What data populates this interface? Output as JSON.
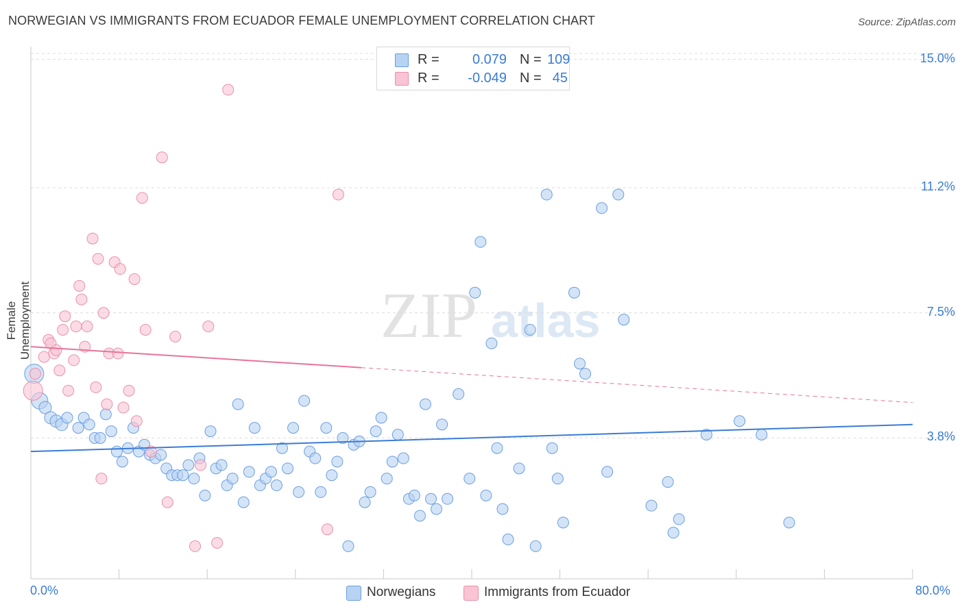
{
  "title": "NORWEGIAN VS IMMIGRANTS FROM ECUADOR FEMALE UNEMPLOYMENT CORRELATION CHART",
  "source": "Source: ZipAtlas.com",
  "watermark": {
    "zip": "ZIP",
    "atlas": "atlas"
  },
  "legend": {
    "r_label": "R =",
    "n_label": "N =",
    "rows": [
      {
        "name": "Norwegians",
        "r": "0.079",
        "n": "109",
        "fill": "#b8d2f2",
        "stroke": "#6a9ee0"
      },
      {
        "name": "Immigrants from Ecuador",
        "r": "-0.049",
        "n": "45",
        "fill": "#f9c4d4",
        "stroke": "#ea8fab"
      }
    ]
  },
  "chart_data": {
    "type": "scatter",
    "title": "NORWEGIAN VS IMMIGRANTS FROM ECUADOR FEMALE UNEMPLOYMENT CORRELATION CHART",
    "xlabel": "",
    "ylabel": "Female Unemployment",
    "xlim": [
      0,
      80
    ],
    "ylim": [
      0,
      15.6
    ],
    "x_tick_labels": [
      "0.0%",
      "80.0%"
    ],
    "y_ticks": [
      {
        "value": 3.8,
        "label": "3.8%"
      },
      {
        "value": 7.5,
        "label": "7.5%"
      },
      {
        "value": 11.2,
        "label": "11.2%"
      },
      {
        "value": 15.0,
        "label": "15.0%"
      }
    ],
    "grid": true,
    "series": [
      {
        "name": "Norwegians",
        "color": "#3a7bd5",
        "fill": "#b8d2f2",
        "stroke": "#6a9ee0",
        "trend": {
          "x": [
            0,
            80
          ],
          "y": [
            3.4,
            4.2
          ],
          "dashed_from": null
        },
        "points": [
          [
            0.3,
            5.7,
            14
          ],
          [
            0.8,
            4.9,
            12
          ],
          [
            1.3,
            4.7,
            9
          ],
          [
            1.8,
            4.4,
            9
          ],
          [
            2.3,
            4.3,
            9
          ],
          [
            2.8,
            4.2,
            9
          ],
          [
            3.3,
            4.4,
            8
          ],
          [
            4.3,
            4.1,
            8
          ],
          [
            4.8,
            4.4,
            8
          ],
          [
            5.3,
            4.2,
            8
          ],
          [
            5.8,
            3.8,
            8
          ],
          [
            6.3,
            3.8,
            8
          ],
          [
            6.8,
            4.5,
            8
          ],
          [
            7.3,
            4.0,
            8
          ],
          [
            7.8,
            3.4,
            8
          ],
          [
            8.3,
            3.1,
            8
          ],
          [
            8.8,
            3.5,
            8
          ],
          [
            9.3,
            4.1,
            8
          ],
          [
            9.8,
            3.4,
            8
          ],
          [
            10.3,
            3.6,
            8
          ],
          [
            10.8,
            3.3,
            8
          ],
          [
            11.3,
            3.2,
            8
          ],
          [
            11.8,
            3.3,
            8
          ],
          [
            12.3,
            2.9,
            8
          ],
          [
            12.8,
            2.7,
            8
          ],
          [
            13.3,
            2.7,
            8
          ],
          [
            13.8,
            2.7,
            8
          ],
          [
            14.3,
            3.0,
            8
          ],
          [
            14.8,
            2.6,
            8
          ],
          [
            15.3,
            3.2,
            8
          ],
          [
            15.8,
            2.1,
            8
          ],
          [
            16.3,
            4.0,
            8
          ],
          [
            16.8,
            2.9,
            8
          ],
          [
            17.3,
            3.0,
            8
          ],
          [
            17.8,
            2.4,
            8
          ],
          [
            18.3,
            2.6,
            8
          ],
          [
            18.8,
            4.8,
            8
          ],
          [
            19.3,
            1.9,
            8
          ],
          [
            19.8,
            2.8,
            8
          ],
          [
            20.3,
            4.1,
            8
          ],
          [
            20.8,
            2.4,
            8
          ],
          [
            21.3,
            2.6,
            8
          ],
          [
            21.8,
            2.8,
            8
          ],
          [
            22.3,
            2.4,
            8
          ],
          [
            22.8,
            3.5,
            8
          ],
          [
            23.3,
            2.9,
            8
          ],
          [
            23.8,
            4.1,
            8
          ],
          [
            24.3,
            2.2,
            8
          ],
          [
            24.8,
            4.9,
            8
          ],
          [
            25.3,
            3.4,
            8
          ],
          [
            25.8,
            3.2,
            8
          ],
          [
            26.3,
            2.2,
            8
          ],
          [
            26.8,
            4.1,
            8
          ],
          [
            27.3,
            2.7,
            8
          ],
          [
            27.8,
            3.1,
            8
          ],
          [
            28.3,
            3.8,
            8
          ],
          [
            28.8,
            0.6,
            8
          ],
          [
            29.3,
            3.6,
            8
          ],
          [
            29.8,
            3.7,
            8
          ],
          [
            30.3,
            1.9,
            8
          ],
          [
            30.8,
            2.2,
            8
          ],
          [
            31.3,
            4.0,
            8
          ],
          [
            31.8,
            4.4,
            8
          ],
          [
            32.3,
            2.6,
            8
          ],
          [
            32.8,
            3.1,
            8
          ],
          [
            33.3,
            3.9,
            8
          ],
          [
            33.8,
            3.2,
            8
          ],
          [
            34.3,
            2.0,
            8
          ],
          [
            34.8,
            2.1,
            8
          ],
          [
            35.3,
            1.5,
            8
          ],
          [
            35.8,
            4.8,
            8
          ],
          [
            36.3,
            2.0,
            8
          ],
          [
            36.8,
            1.7,
            8
          ],
          [
            37.3,
            4.2,
            8
          ],
          [
            37.8,
            2.0,
            8
          ],
          [
            38.8,
            5.1,
            8
          ],
          [
            39.8,
            2.6,
            8
          ],
          [
            40.3,
            8.1,
            8
          ],
          [
            40.8,
            9.6,
            8
          ],
          [
            41.3,
            2.1,
            8
          ],
          [
            41.8,
            6.6,
            8
          ],
          [
            42.3,
            3.5,
            8
          ],
          [
            42.8,
            1.7,
            8
          ],
          [
            43.3,
            0.8,
            8
          ],
          [
            44.3,
            2.9,
            8
          ],
          [
            45.3,
            7.0,
            8
          ],
          [
            45.8,
            0.6,
            8
          ],
          [
            46.8,
            11.0,
            8
          ],
          [
            47.3,
            3.5,
            8
          ],
          [
            47.8,
            2.6,
            8
          ],
          [
            48.3,
            1.3,
            8
          ],
          [
            49.3,
            8.1,
            8
          ],
          [
            49.8,
            6.0,
            8
          ],
          [
            50.3,
            5.7,
            8
          ],
          [
            51.8,
            10.6,
            8
          ],
          [
            52.3,
            2.8,
            8
          ],
          [
            53.3,
            11.0,
            8
          ],
          [
            53.8,
            7.3,
            8
          ],
          [
            56.3,
            1.8,
            8
          ],
          [
            57.8,
            2.5,
            8
          ],
          [
            58.3,
            1.0,
            8
          ],
          [
            58.8,
            1.4,
            8
          ],
          [
            61.3,
            3.9,
            8
          ],
          [
            64.3,
            4.3,
            8
          ],
          [
            66.3,
            3.9,
            8
          ],
          [
            68.8,
            1.3,
            8
          ]
        ]
      },
      {
        "name": "Immigrants from Ecuador",
        "color": "#e8739a",
        "fill": "#f9c4d4",
        "stroke": "#ea8fab",
        "trend": {
          "x": [
            0,
            80
          ],
          "y": [
            6.5,
            4.85
          ],
          "dashed_from": 30
        },
        "points": [
          [
            0.2,
            5.2,
            14
          ],
          [
            0.4,
            5.7,
            8
          ],
          [
            1.2,
            6.2,
            8
          ],
          [
            1.6,
            6.7,
            8
          ],
          [
            1.8,
            6.6,
            8
          ],
          [
            2.1,
            6.3,
            8
          ],
          [
            2.3,
            6.4,
            8
          ],
          [
            2.6,
            5.8,
            8
          ],
          [
            2.9,
            7.0,
            8
          ],
          [
            3.1,
            7.4,
            8
          ],
          [
            3.4,
            5.2,
            8
          ],
          [
            3.9,
            6.1,
            8
          ],
          [
            4.1,
            7.1,
            8
          ],
          [
            4.4,
            8.3,
            8
          ],
          [
            4.6,
            7.9,
            8
          ],
          [
            4.9,
            6.5,
            8
          ],
          [
            5.1,
            7.1,
            8
          ],
          [
            5.6,
            9.7,
            8
          ],
          [
            5.9,
            5.3,
            8
          ],
          [
            6.1,
            9.1,
            8
          ],
          [
            6.4,
            2.6,
            8
          ],
          [
            6.6,
            7.5,
            8
          ],
          [
            6.9,
            4.8,
            8
          ],
          [
            7.1,
            6.3,
            8
          ],
          [
            7.6,
            9.0,
            8
          ],
          [
            7.9,
            6.3,
            8
          ],
          [
            8.1,
            8.8,
            8
          ],
          [
            8.4,
            4.7,
            8
          ],
          [
            8.9,
            5.2,
            8
          ],
          [
            9.4,
            8.5,
            8
          ],
          [
            9.6,
            4.3,
            8
          ],
          [
            10.1,
            10.9,
            8
          ],
          [
            10.4,
            7.0,
            8
          ],
          [
            10.9,
            3.4,
            8
          ],
          [
            11.9,
            12.1,
            8
          ],
          [
            12.4,
            1.9,
            8
          ],
          [
            13.1,
            6.8,
            8
          ],
          [
            14.9,
            0.6,
            8
          ],
          [
            15.4,
            3.0,
            8
          ],
          [
            16.1,
            7.1,
            8
          ],
          [
            16.9,
            0.7,
            8
          ],
          [
            17.9,
            14.1,
            8
          ],
          [
            26.9,
            1.1,
            8
          ],
          [
            27.9,
            11.0,
            8
          ],
          [
            28.8,
            0.6,
            0
          ]
        ]
      }
    ]
  }
}
